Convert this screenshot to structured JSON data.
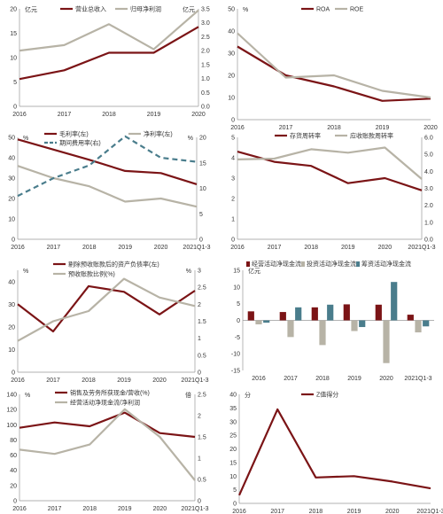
{
  "chart_data": [
    {
      "type": "line",
      "categories": [
        "2016",
        "2017",
        "2018",
        "2019",
        "2020"
      ],
      "y_left": {
        "unit": "亿元",
        "ticks": [
          0,
          5,
          10,
          15,
          20
        ],
        "range": [
          0,
          20
        ]
      },
      "y_right": {
        "unit": "亿元",
        "ticks": [
          "0.0",
          "0.5",
          "1.0",
          "1.5",
          "2.0",
          "2.5",
          "3.0",
          "3.5"
        ],
        "range": [
          0,
          3.5
        ]
      },
      "legend": "top",
      "series": [
        {
          "name": "营业总收入",
          "axis": "left",
          "color": "#7b1416",
          "values": [
            5.6,
            7.4,
            11.0,
            11.0,
            16.3
          ]
        },
        {
          "name": "归母净利润",
          "axis": "right",
          "color": "#b7b3a6",
          "values": [
            2.0,
            2.2,
            2.95,
            2.05,
            3.45
          ]
        }
      ]
    },
    {
      "type": "line",
      "categories": [
        "2016",
        "2017",
        "2018",
        "2019",
        "2020"
      ],
      "y_left": {
        "unit": "%",
        "ticks": [
          0,
          10,
          20,
          30,
          40,
          50
        ],
        "range": [
          0,
          50
        ]
      },
      "legend": "top",
      "series": [
        {
          "name": "ROA",
          "axis": "left",
          "color": "#7b1416",
          "values": [
            33,
            20,
            15,
            8.5,
            9.5
          ]
        },
        {
          "name": "ROE",
          "axis": "left",
          "color": "#b7b3a6",
          "values": [
            39,
            19,
            20,
            13,
            10
          ]
        }
      ]
    },
    {
      "type": "line",
      "categories": [
        "2016",
        "2017",
        "2018",
        "2019",
        "2020",
        "2021Q1-3"
      ],
      "y_left": {
        "unit": "%",
        "ticks": [
          0,
          10,
          20,
          30,
          40,
          50
        ],
        "range": [
          0,
          50
        ]
      },
      "y_right": {
        "unit": "%",
        "ticks": [
          0,
          5,
          10,
          15,
          20
        ],
        "range": [
          0,
          20
        ]
      },
      "legend": "top",
      "series": [
        {
          "name": "毛利率(左)",
          "axis": "left",
          "color": "#7b1416",
          "values": [
            49,
            44,
            39,
            33.5,
            32.5,
            27
          ]
        },
        {
          "name": "净利率(左)",
          "axis": "left",
          "color": "#b7b3a6",
          "values": [
            36,
            30,
            26,
            18.5,
            20,
            16
          ]
        },
        {
          "name": "期间费用率(右)",
          "axis": "right",
          "color": "#4a7d8c",
          "dashed": true,
          "values": [
            8.5,
            12,
            14.5,
            20.2,
            16,
            15.2
          ]
        }
      ]
    },
    {
      "type": "line",
      "categories": [
        "2016",
        "2017",
        "2018",
        "2019",
        "2020",
        "2021Q1-3"
      ],
      "y_left": {
        "unit": "",
        "ticks": [
          0,
          1,
          2,
          3,
          4,
          5
        ],
        "range": [
          0,
          5
        ]
      },
      "y_right": {
        "unit": "",
        "ticks": [
          "0.0",
          "1.0",
          "2.0",
          "3.0",
          "4.0",
          "5.0",
          "6.0"
        ],
        "range": [
          0,
          6
        ]
      },
      "legend": "top",
      "series": [
        {
          "name": "存货周转率",
          "axis": "left",
          "color": "#7b1416",
          "values": [
            4.3,
            3.8,
            3.6,
            2.75,
            3.0,
            2.4
          ]
        },
        {
          "name": "应收账款周转率",
          "axis": "right",
          "color": "#b7b3a6",
          "values": [
            4.7,
            4.75,
            5.3,
            5.1,
            5.4,
            3.55
          ]
        }
      ]
    },
    {
      "type": "line",
      "categories": [
        "2016",
        "2017",
        "2018",
        "2019",
        "2020",
        "2021Q1-3"
      ],
      "y_left": {
        "unit": "%",
        "ticks": [
          0,
          10,
          20,
          30,
          40
        ],
        "range": [
          0,
          45
        ]
      },
      "y_right": {
        "unit": "%",
        "ticks": [
          0,
          0.5,
          1,
          1.5,
          2,
          2.5,
          3
        ],
        "range": [
          0,
          3
        ]
      },
      "legend": "top",
      "series": [
        {
          "name": "剔除预收账款后的资产负债率(左)",
          "axis": "left",
          "color": "#7b1416",
          "values": [
            30,
            18,
            38,
            35.5,
            25.5,
            36
          ]
        },
        {
          "name": "预收账款比例(%)",
          "axis": "right",
          "color": "#b7b3a6",
          "values": [
            0.92,
            1.5,
            1.8,
            2.75,
            2.2,
            1.95
          ]
        }
      ]
    },
    {
      "type": "bar",
      "categories": [
        "2016",
        "2017",
        "2018",
        "2019",
        "2020",
        "2021Q1-3"
      ],
      "y_left": {
        "unit": "亿元",
        "ticks": [
          -15,
          -10,
          -5,
          0,
          5,
          10,
          15
        ],
        "range": [
          -15,
          15
        ]
      },
      "legend": "top",
      "series": [
        {
          "name": "经营活动净现金流",
          "color": "#7b1416",
          "values": [
            2.7,
            2.5,
            3.9,
            4.8,
            4.7,
            1.7
          ]
        },
        {
          "name": "投资活动净现金流",
          "color": "#b7b3a6",
          "values": [
            -1.2,
            -5.0,
            -7.4,
            -3.2,
            -12.8,
            -3.6
          ]
        },
        {
          "name": "筹资活动净现金流",
          "color": "#4a7d8c",
          "values": [
            -0.7,
            3.9,
            4.7,
            -2.0,
            11.5,
            -1.8
          ]
        }
      ]
    },
    {
      "type": "line",
      "categories": [
        "2016",
        "2017",
        "2018",
        "2019",
        "2020",
        "2021Q1-3"
      ],
      "y_left": {
        "unit": "%",
        "ticks": [
          0,
          20,
          40,
          60,
          80,
          100,
          120,
          140
        ],
        "range": [
          0,
          140
        ]
      },
      "y_right": {
        "unit": "倍",
        "ticks": [
          0,
          0.5,
          1,
          1.5,
          2,
          2.5
        ],
        "range": [
          0,
          2.5
        ]
      },
      "legend": "top",
      "series": [
        {
          "name": "销售及劳务所获现金/营收(%)",
          "axis": "left",
          "color": "#7b1416",
          "values": [
            96,
            103,
            98,
            116,
            89,
            84
          ]
        },
        {
          "name": "经营活动净现金流/净利润",
          "axis": "right",
          "color": "#b7b3a6",
          "values": [
            1.2,
            1.1,
            1.32,
            2.15,
            1.5,
            0.48
          ]
        }
      ]
    },
    {
      "type": "line",
      "categories": [
        "2016",
        "2017",
        "2018",
        "2019",
        "2020",
        "2021Q1-3"
      ],
      "y_left": {
        "unit": "分",
        "ticks": [
          0,
          5,
          10,
          15,
          20,
          25,
          30,
          35,
          40
        ],
        "range": [
          0,
          40
        ]
      },
      "legend": "top",
      "series": [
        {
          "name": "Z值得分",
          "axis": "left",
          "color": "#7b1416",
          "values": [
            3,
            34.5,
            9.5,
            10,
            8,
            5.5
          ]
        }
      ]
    }
  ]
}
